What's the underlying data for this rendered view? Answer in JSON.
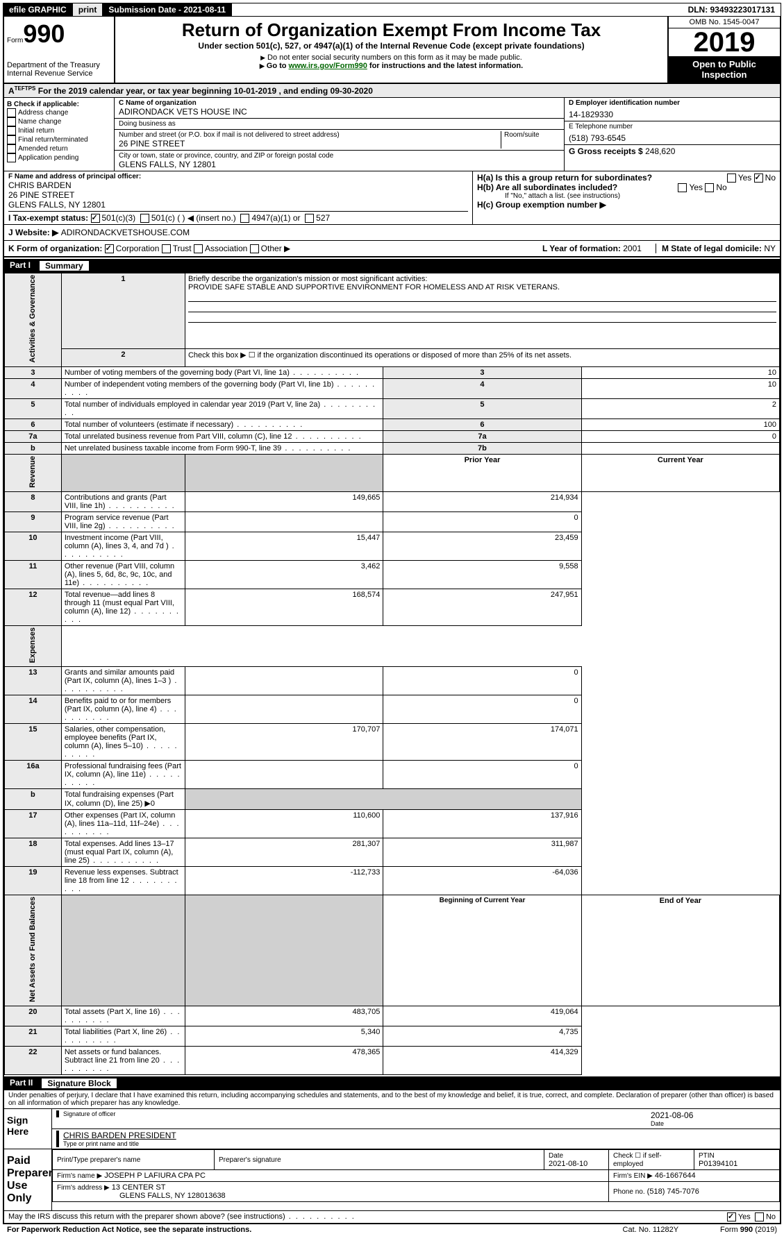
{
  "top_bar": {
    "efile": "efile GRAPHIC",
    "print": "print",
    "submission_label": "Submission Date - 2021-08-11",
    "dln": "DLN: 93493223017131"
  },
  "header": {
    "form_prefix": "Form",
    "form_number": "990",
    "title": "Return of Organization Exempt From Income Tax",
    "subtitle": "Under section 501(c), 527, or 4947(a)(1) of the Internal Revenue Code (except private foundations)",
    "note1": "Do not enter social security numbers on this form as it may be made public.",
    "note2_pre": "Go to ",
    "note2_link": "www.irs.gov/Form990",
    "note2_post": " for instructions and the latest information.",
    "dept": "Department of the Treasury\nInternal Revenue Service",
    "omb": "OMB No. 1545-0047",
    "year": "2019",
    "open_public": "Open to Public Inspection"
  },
  "period": {
    "line": "For the 2019 calendar year, or tax year beginning 10-01-2019   , and ending 09-30-2020"
  },
  "box_b": {
    "label": "B Check if applicable:",
    "items": [
      "Address change",
      "Name change",
      "Initial return",
      "Final return/terminated",
      "Amended return",
      "Application pending"
    ]
  },
  "box_c": {
    "name_label": "C Name of organization",
    "name": "ADIRONDACK VETS HOUSE INC",
    "dba_label": "Doing business as",
    "addr_label": "Number and street (or P.O. box if mail is not delivered to street address)",
    "room_label": "Room/suite",
    "address": "26 PINE STREET",
    "city_label": "City or town, state or province, country, and ZIP or foreign postal code",
    "city": "GLENS FALLS, NY  12801"
  },
  "box_d": {
    "label": "D Employer identification number",
    "value": "14-1829330"
  },
  "box_e": {
    "label": "E Telephone number",
    "value": "(518) 793-6545"
  },
  "box_g": {
    "label": "G Gross receipts $",
    "value": "248,620"
  },
  "box_f": {
    "label": "F  Name and address of principal officer:",
    "name": "CHRIS BARDEN",
    "addr1": "26 PINE STREET",
    "addr2": "GLENS FALLS, NY  12801"
  },
  "box_h": {
    "ha_label": "H(a)  Is this a group return for subordinates?",
    "hb_label": "H(b)  Are all subordinates included?",
    "hb_note": "If \"No,\" attach a list. (see instructions)",
    "hc_label": "H(c)  Group exemption number ▶"
  },
  "row_i": {
    "label": "I  Tax-exempt status:",
    "c3": "501(c)(3)",
    "c": "501(c) (  ) ◀ (insert no.)",
    "a1": "4947(a)(1) or",
    "s527": "527"
  },
  "row_j": {
    "label": "J  Website: ▶",
    "value": "ADIRONDACKVETSHOUSE.COM"
  },
  "row_k": {
    "label": "K Form of organization:",
    "corp": "Corporation",
    "trust": "Trust",
    "assoc": "Association",
    "other": "Other ▶",
    "l_label": "L Year of formation:",
    "l_value": "2001",
    "m_label": "M State of legal domicile:",
    "m_value": "NY"
  },
  "part1": {
    "num": "Part I",
    "title": "Summary",
    "q1_label": "Briefly describe the organization's mission or most significant activities:",
    "q1_value": "PROVIDE SAFE STABLE AND SUPPORTIVE ENVIRONMENT FOR HOMELESS AND AT RISK VETERANS.",
    "q2": "Check this box ▶ ☐ if the organization discontinued its operations or disposed of more than 25% of its net assets.",
    "rows_gov": [
      {
        "n": "3",
        "t": "Number of voting members of the governing body (Part VI, line 1a)",
        "k": "3",
        "v": "10"
      },
      {
        "n": "4",
        "t": "Number of independent voting members of the governing body (Part VI, line 1b)",
        "k": "4",
        "v": "10"
      },
      {
        "n": "5",
        "t": "Total number of individuals employed in calendar year 2019 (Part V, line 2a)",
        "k": "5",
        "v": "2"
      },
      {
        "n": "6",
        "t": "Total number of volunteers (estimate if necessary)",
        "k": "6",
        "v": "100"
      },
      {
        "n": "7a",
        "t": "Total unrelated business revenue from Part VIII, column (C), line 12",
        "k": "7a",
        "v": "0"
      },
      {
        "n": "b",
        "t": "Net unrelated business taxable income from Form 990-T, line 39",
        "k": "7b",
        "v": ""
      }
    ],
    "prior_label": "Prior Year",
    "current_label": "Current Year",
    "rows_rev": [
      {
        "n": "8",
        "t": "Contributions and grants (Part VIII, line 1h)",
        "p": "149,665",
        "c": "214,934"
      },
      {
        "n": "9",
        "t": "Program service revenue (Part VIII, line 2g)",
        "p": "",
        "c": "0"
      },
      {
        "n": "10",
        "t": "Investment income (Part VIII, column (A), lines 3, 4, and 7d )",
        "p": "15,447",
        "c": "23,459"
      },
      {
        "n": "11",
        "t": "Other revenue (Part VIII, column (A), lines 5, 6d, 8c, 9c, 10c, and 11e)",
        "p": "3,462",
        "c": "9,558"
      },
      {
        "n": "12",
        "t": "Total revenue—add lines 8 through 11 (must equal Part VIII, column (A), line 12)",
        "p": "168,574",
        "c": "247,951"
      }
    ],
    "rows_exp": [
      {
        "n": "13",
        "t": "Grants and similar amounts paid (Part IX, column (A), lines 1–3 )",
        "p": "",
        "c": "0"
      },
      {
        "n": "14",
        "t": "Benefits paid to or for members (Part IX, column (A), line 4)",
        "p": "",
        "c": "0"
      },
      {
        "n": "15",
        "t": "Salaries, other compensation, employee benefits (Part IX, column (A), lines 5–10)",
        "p": "170,707",
        "c": "174,071"
      },
      {
        "n": "16a",
        "t": "Professional fundraising fees (Part IX, column (A), line 11e)",
        "p": "",
        "c": "0"
      },
      {
        "n": "b",
        "t": "Total fundraising expenses (Part IX, column (D), line 25) ▶0",
        "p": null,
        "c": null
      },
      {
        "n": "17",
        "t": "Other expenses (Part IX, column (A), lines 11a–11d, 11f–24e)",
        "p": "110,600",
        "c": "137,916"
      },
      {
        "n": "18",
        "t": "Total expenses. Add lines 13–17 (must equal Part IX, column (A), line 25)",
        "p": "281,307",
        "c": "311,987"
      },
      {
        "n": "19",
        "t": "Revenue less expenses. Subtract line 18 from line 12",
        "p": "-112,733",
        "c": "-64,036"
      }
    ],
    "boy_label": "Beginning of Current Year",
    "eoy_label": "End of Year",
    "rows_net": [
      {
        "n": "20",
        "t": "Total assets (Part X, line 16)",
        "p": "483,705",
        "c": "419,064"
      },
      {
        "n": "21",
        "t": "Total liabilities (Part X, line 26)",
        "p": "5,340",
        "c": "4,735"
      },
      {
        "n": "22",
        "t": "Net assets or fund balances. Subtract line 21 from line 20",
        "p": "478,365",
        "c": "414,329"
      }
    ],
    "vlabels": {
      "gov": "Activities & Governance",
      "rev": "Revenue",
      "exp": "Expenses",
      "net": "Net Assets or Fund Balances"
    }
  },
  "part2": {
    "num": "Part II",
    "title": "Signature Block",
    "perjury": "Under penalties of perjury, I declare that I have examined this return, including accompanying schedules and statements, and to the best of my knowledge and belief, it is true, correct, and complete. Declaration of preparer (other than officer) is based on all information of which preparer has any knowledge.",
    "sign_here": "Sign Here",
    "sig_officer": "Signature of officer",
    "sig_date": "2021-08-06",
    "sig_date_label": "Date",
    "officer_name": "CHRIS BARDEN  PRESIDENT",
    "officer_label": "Type or print name and title",
    "paid": "Paid Preparer Use Only",
    "pt_name_label": "Print/Type preparer's name",
    "pt_sig_label": "Preparer's signature",
    "pt_date_label": "Date",
    "pt_date": "2021-08-10",
    "pt_check_label": "Check ☐ if self-employed",
    "ptin_label": "PTIN",
    "ptin": "P01394101",
    "firm_name_label": "Firm's name   ▶",
    "firm_name": "JOSEPH P LAFIURA CPA PC",
    "firm_ein_label": "Firm's EIN ▶",
    "firm_ein": "46-1667644",
    "firm_addr_label": "Firm's address ▶",
    "firm_addr1": "13 CENTER ST",
    "firm_addr2": "GLENS FALLS, NY  128013638",
    "phone_label": "Phone no.",
    "phone": "(518) 745-7076",
    "discuss": "May the IRS discuss this return with the preparer shown above? (see instructions)",
    "yes": "Yes",
    "no": "No"
  },
  "footer": {
    "left": "For Paperwork Reduction Act Notice, see the separate instructions.",
    "mid": "Cat. No. 11282Y",
    "right": "Form 990 (2019)"
  }
}
